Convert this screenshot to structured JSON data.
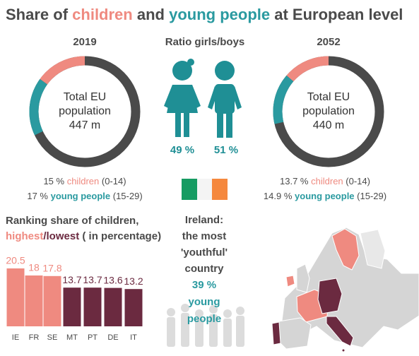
{
  "title": {
    "parts": [
      {
        "text": "Share of",
        "color": "#4a4a4a"
      },
      {
        "text": "children",
        "color": "#ef8a80"
      },
      {
        "text": "and",
        "color": "#4a4a4a"
      },
      {
        "text": "young people",
        "color": "#2a9aa0"
      },
      {
        "text": "at European level",
        "color": "#4a4a4a"
      }
    ]
  },
  "donuts": [
    {
      "year": "2019",
      "center_lines": [
        "Total EU",
        "population",
        "447 m"
      ],
      "segments": [
        {
          "value": 15,
          "label": "15 %",
          "name": "children",
          "range": "(0-14)",
          "color": "#ef8a80"
        },
        {
          "value": 17,
          "label": "17 %",
          "name": "young people",
          "range": "(15-29)",
          "color": "#2a9aa0"
        }
      ]
    },
    {
      "year": "2052",
      "center_lines": [
        "Total EU",
        "population",
        "440 m"
      ],
      "segments": [
        {
          "value": 13.7,
          "label": "13.7 %",
          "name": "children",
          "range": "(0-14)",
          "color": "#ef8a80"
        },
        {
          "value": 14.9,
          "label": "14.9 %",
          "name": "young people",
          "range": "(15-29)",
          "color": "#2a9aa0"
        }
      ]
    }
  ],
  "ratio": {
    "title": "Ratio girls/boys",
    "girls": "49 %",
    "boys": "51 %"
  },
  "ranking": {
    "title_line1": "Ranking share of children,",
    "highest": "highest",
    "lowest": "/lowest",
    "unit": "( in percentage)",
    "categories": [
      "IE",
      "FR",
      "SE",
      "MT",
      "PT",
      "DE",
      "IT"
    ],
    "values": [
      20.5,
      18,
      17.8,
      13.7,
      13.7,
      13.6,
      13.2
    ],
    "colors": [
      "#ef8a80",
      "#ef8a80",
      "#ef8a80",
      "#6b2a40",
      "#6b2a40",
      "#6b2a40",
      "#6b2a40"
    ]
  },
  "ireland": {
    "lines": [
      "Ireland:",
      "the most",
      "'youthful'",
      "country"
    ],
    "share": "39 %",
    "share_lines": [
      "young",
      "people"
    ]
  }
}
